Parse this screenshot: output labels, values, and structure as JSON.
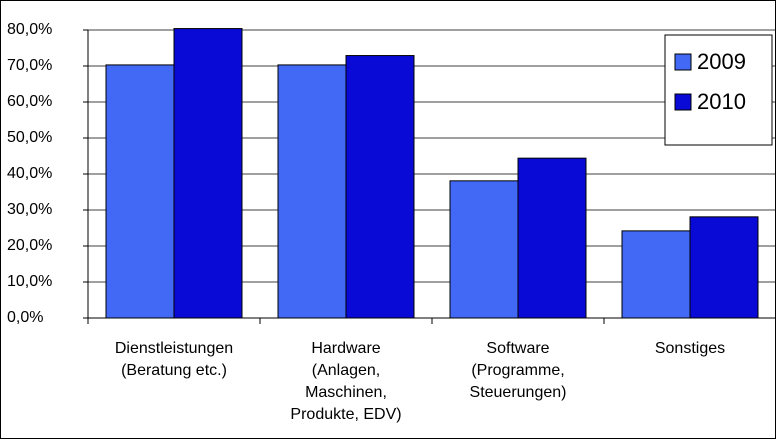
{
  "chart_data": {
    "type": "bar",
    "categories": [
      "Dienstleistungen\n(Beratung etc.)",
      "Hardware\n(Anlagen,\nMaschinen,\nProdukte, EDV)",
      "Software\n(Programme,\nSteuerungen)",
      "Sonstiges"
    ],
    "series": [
      {
        "name": "2009",
        "color": "#4169f5",
        "values": [
          70.3,
          70.3,
          38.1,
          24.2
        ]
      },
      {
        "name": "2010",
        "color": "#0a0ad6",
        "values": [
          80.4,
          72.9,
          44.4,
          28.1
        ]
      }
    ],
    "ylim": [
      0,
      80
    ],
    "yticks": [
      {
        "value": 0,
        "label": "0,0%"
      },
      {
        "value": 10,
        "label": "10,0%"
      },
      {
        "value": 20,
        "label": "20,0%"
      },
      {
        "value": 30,
        "label": "30,0%"
      },
      {
        "value": 40,
        "label": "40,0%"
      },
      {
        "value": 50,
        "label": "50,0%"
      },
      {
        "value": 60,
        "label": "60,0%"
      },
      {
        "value": 70,
        "label": "70,0%"
      },
      {
        "value": 80,
        "label": "80,0%"
      }
    ],
    "grid": true,
    "legend": "upper right"
  }
}
